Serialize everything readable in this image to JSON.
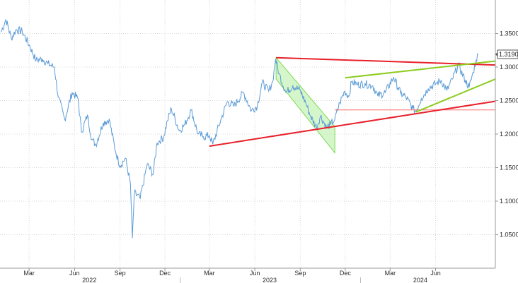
{
  "chart_data": {
    "type": "line",
    "title": "",
    "xlabel": "",
    "ylabel": "",
    "x_range": [
      "2022-01-01",
      "2024-09-30"
    ],
    "ylim": [
      1.0,
      1.4
    ],
    "y_ticks": [
      "1.3500",
      "1.3000",
      "1.2500",
      "1.2000",
      "1.1500",
      "1.1000",
      "1.0500"
    ],
    "x_ticks": [
      {
        "label": "Mar",
        "date": "2022-03-01"
      },
      {
        "label": "Jun",
        "date": "2022-06-01"
      },
      {
        "label": "Sep",
        "date": "2022-09-01"
      },
      {
        "label": "Dec",
        "date": "2022-12-01"
      },
      {
        "label": "Mar",
        "date": "2023-03-01"
      },
      {
        "label": "Jun",
        "date": "2023-06-01"
      },
      {
        "label": "Sep",
        "date": "2023-09-01"
      },
      {
        "label": "Dec",
        "date": "2023-12-01"
      },
      {
        "label": "Mar",
        "date": "2024-03-01"
      },
      {
        "label": "Jun",
        "date": "2024-06-01"
      }
    ],
    "years": [
      {
        "label": "2022",
        "date": "2022-07-01"
      },
      {
        "label": "2023",
        "date": "2023-07-01"
      },
      {
        "label": "2024",
        "date": "2024-05-01"
      }
    ],
    "grid": true,
    "last_value_label": "1.3190",
    "series": [
      {
        "color": "#5b9bd5",
        "points": [
          [
            "2022-01-03",
            1.352
          ],
          [
            "2022-01-13",
            1.371
          ],
          [
            "2022-01-24",
            1.343
          ],
          [
            "2022-02-03",
            1.356
          ],
          [
            "2022-02-15",
            1.353
          ],
          [
            "2022-03-01",
            1.333
          ],
          [
            "2022-03-15",
            1.31
          ],
          [
            "2022-03-28",
            1.312
          ],
          [
            "2022-04-08",
            1.305
          ],
          [
            "2022-04-21",
            1.3
          ],
          [
            "2022-04-29",
            1.255
          ],
          [
            "2022-05-12",
            1.222
          ],
          [
            "2022-05-27",
            1.262
          ],
          [
            "2022-06-08",
            1.253
          ],
          [
            "2022-06-15",
            1.203
          ],
          [
            "2022-06-27",
            1.228
          ],
          [
            "2022-07-06",
            1.192
          ],
          [
            "2022-07-14",
            1.184
          ],
          [
            "2022-07-29",
            1.217
          ],
          [
            "2022-08-10",
            1.222
          ],
          [
            "2022-08-23",
            1.174
          ],
          [
            "2022-09-01",
            1.153
          ],
          [
            "2022-09-12",
            1.164
          ],
          [
            "2022-09-22",
            1.127
          ],
          [
            "2022-09-26",
            1.045
          ],
          [
            "2022-09-30",
            1.112
          ],
          [
            "2022-10-12",
            1.104
          ],
          [
            "2022-10-26",
            1.155
          ],
          [
            "2022-11-07",
            1.14
          ],
          [
            "2022-11-15",
            1.187
          ],
          [
            "2022-11-28",
            1.195
          ],
          [
            "2022-12-06",
            1.22
          ],
          [
            "2022-12-14",
            1.238
          ],
          [
            "2022-12-30",
            1.205
          ],
          [
            "2023-01-10",
            1.214
          ],
          [
            "2023-01-23",
            1.236
          ],
          [
            "2023-02-06",
            1.2
          ],
          [
            "2023-02-17",
            1.196
          ],
          [
            "2023-03-01",
            1.198
          ],
          [
            "2023-03-08",
            1.185
          ],
          [
            "2023-03-24",
            1.221
          ],
          [
            "2023-04-06",
            1.248
          ],
          [
            "2023-04-20",
            1.242
          ],
          [
            "2023-05-09",
            1.262
          ],
          [
            "2023-05-25",
            1.235
          ],
          [
            "2023-06-06",
            1.242
          ],
          [
            "2023-06-16",
            1.277
          ],
          [
            "2023-06-29",
            1.264
          ],
          [
            "2023-07-07",
            1.278
          ],
          [
            "2023-07-13",
            1.312
          ],
          [
            "2023-07-20",
            1.29
          ],
          [
            "2023-08-03",
            1.262
          ],
          [
            "2023-08-17",
            1.272
          ],
          [
            "2023-08-31",
            1.266
          ],
          [
            "2023-09-12",
            1.247
          ],
          [
            "2023-09-22",
            1.226
          ],
          [
            "2023-10-04",
            1.21
          ],
          [
            "2023-10-12",
            1.227
          ],
          [
            "2023-10-24",
            1.21
          ],
          [
            "2023-11-01",
            1.214
          ],
          [
            "2023-11-10",
            1.222
          ],
          [
            "2023-11-20",
            1.247
          ],
          [
            "2023-11-30",
            1.264
          ],
          [
            "2023-12-08",
            1.256
          ],
          [
            "2023-12-14",
            1.278
          ],
          [
            "2023-12-26",
            1.274
          ],
          [
            "2024-01-10",
            1.275
          ],
          [
            "2024-01-26",
            1.272
          ],
          [
            "2024-02-05",
            1.257
          ],
          [
            "2024-02-20",
            1.262
          ],
          [
            "2024-03-08",
            1.285
          ],
          [
            "2024-03-22",
            1.261
          ],
          [
            "2024-04-02",
            1.255
          ],
          [
            "2024-04-16",
            1.238
          ],
          [
            "2024-04-22",
            1.234
          ],
          [
            "2024-05-03",
            1.253
          ],
          [
            "2024-05-17",
            1.268
          ],
          [
            "2024-06-03",
            1.276
          ],
          [
            "2024-06-12",
            1.28
          ],
          [
            "2024-06-24",
            1.265
          ],
          [
            "2024-07-05",
            1.282
          ],
          [
            "2024-07-17",
            1.303
          ],
          [
            "2024-07-31",
            1.28
          ],
          [
            "2024-08-08",
            1.27
          ],
          [
            "2024-08-16",
            1.292
          ],
          [
            "2024-08-22",
            1.31
          ],
          [
            "2024-08-26",
            1.319
          ]
        ]
      }
    ],
    "annotations": {
      "red_lines": [
        {
          "from": [
            "2023-07-14",
            1.314
          ],
          "to": [
            "2024-09-30",
            1.303
          ]
        },
        {
          "from": [
            "2023-03-01",
            1.182
          ],
          "to": [
            "2024-09-30",
            1.249
          ]
        }
      ],
      "green_lines": [
        {
          "from": [
            "2023-12-01",
            1.284
          ],
          "to": [
            "2024-09-30",
            1.309
          ]
        },
        {
          "from": [
            "2024-04-22",
            1.233
          ],
          "to": [
            "2024-09-30",
            1.282
          ]
        }
      ],
      "thin_red_lines": [
        {
          "from": [
            "2023-11-10",
            1.236
          ],
          "to": [
            "2024-09-30",
            1.236
          ]
        }
      ],
      "channel": {
        "upper": [
          [
            "2023-07-14",
            1.314
          ],
          [
            "2023-11-10",
            1.211
          ]
        ],
        "lower": [
          [
            "2023-07-14",
            1.282
          ],
          [
            "2023-11-10",
            1.172
          ]
        ]
      }
    }
  }
}
